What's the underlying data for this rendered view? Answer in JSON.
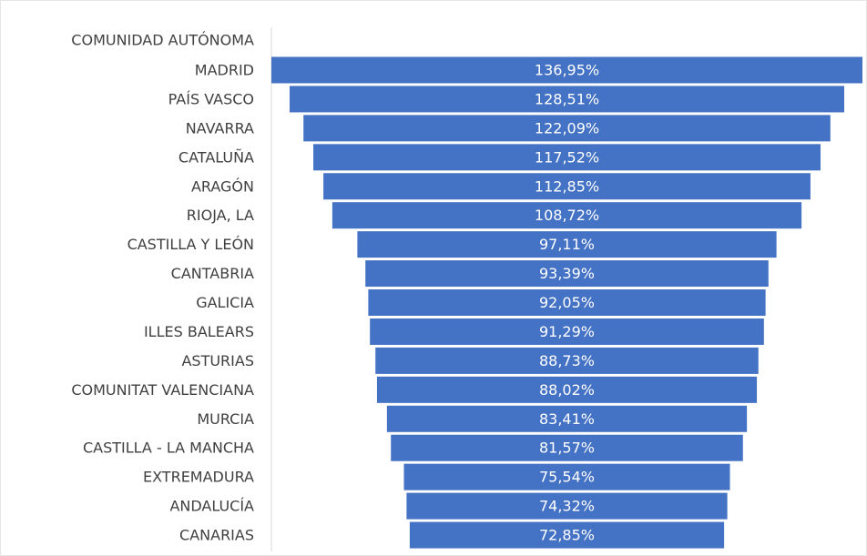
{
  "chart_data": {
    "type": "funnel",
    "category_header": "COMUNIDAD AUTÓNOMA",
    "categories": [
      "MADRID",
      "PAÍS VASCO",
      "NAVARRA",
      "CATALUÑA",
      "ARAGÓN",
      "RIOJA, LA",
      "CASTILLA Y LEÓN",
      "CANTABRIA",
      "GALICIA",
      "ILLES BALEARS",
      "ASTURIAS",
      "COMUNITAT VALENCIANA",
      "MURCIA",
      "CASTILLA - LA MANCHA",
      "EXTREMADURA",
      "ANDALUCÍA",
      "CANARIAS"
    ],
    "values": [
      136.95,
      128.51,
      122.09,
      117.52,
      112.85,
      108.72,
      97.11,
      93.39,
      92.05,
      91.29,
      88.73,
      88.02,
      83.41,
      81.57,
      75.54,
      74.32,
      72.85
    ],
    "value_labels": [
      "136,95%",
      "128,51%",
      "122,09%",
      "117,52%",
      "112,85%",
      "108,72%",
      "97,11%",
      "93,39%",
      "92,05%",
      "91,29%",
      "88,73%",
      "88,02%",
      "83,41%",
      "81,57%",
      "75,54%",
      "74,32%",
      "72,85%"
    ],
    "color": "#4472c4"
  }
}
